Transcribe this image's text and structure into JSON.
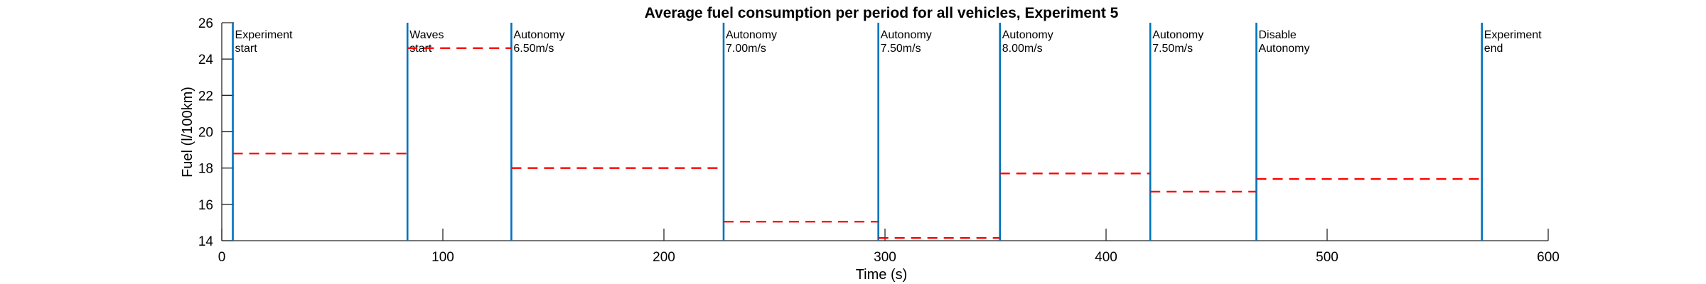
{
  "chart_data": {
    "type": "line",
    "title": "Average fuel consumption per period for all vehicles, Experiment 5",
    "xlabel": "Time (s)",
    "ylabel": "Fuel (l/100km)",
    "xlim": [
      0,
      600
    ],
    "ylim": [
      14,
      26
    ],
    "xticks": [
      0,
      100,
      200,
      300,
      400,
      500,
      600
    ],
    "yticks": [
      14,
      16,
      18,
      20,
      22,
      24,
      26
    ],
    "grid": false,
    "colors": {
      "event_line": "#0072BD",
      "average_line": "#FF0000",
      "axis": "#262626"
    },
    "events": [
      {
        "x": 5,
        "label_line1": "Experiment",
        "label_line2": " start"
      },
      {
        "x": 84,
        "label_line1": "Waves",
        "label_line2": " start"
      },
      {
        "x": 131,
        "label_line1": "Autonomy",
        "label_line2": " 6.50m/s"
      },
      {
        "x": 227,
        "label_line1": "Autonomy",
        "label_line2": " 7.00m/s"
      },
      {
        "x": 297,
        "label_line1": "Autonomy",
        "label_line2": " 7.50m/s"
      },
      {
        "x": 352,
        "label_line1": "Autonomy",
        "label_line2": " 8.00m/s"
      },
      {
        "x": 420,
        "label_line1": "Autonomy",
        "label_line2": " 7.50m/s"
      },
      {
        "x": 468,
        "label_line1": "Disable",
        "label_line2": " Autonomy"
      },
      {
        "x": 570,
        "label_line1": "Experiment",
        "label_line2": " end"
      }
    ],
    "period_averages": [
      {
        "x_start": 5,
        "x_end": 84,
        "y": 18.8
      },
      {
        "x_start": 84,
        "x_end": 131,
        "y": 24.6
      },
      {
        "x_start": 131,
        "x_end": 227,
        "y": 18.0
      },
      {
        "x_start": 227,
        "x_end": 297,
        "y": 15.05
      },
      {
        "x_start": 297,
        "x_end": 352,
        "y": 14.15
      },
      {
        "x_start": 352,
        "x_end": 420,
        "y": 17.7
      },
      {
        "x_start": 420,
        "x_end": 468,
        "y": 16.7
      },
      {
        "x_start": 468,
        "x_end": 570,
        "y": 17.4
      }
    ]
  }
}
